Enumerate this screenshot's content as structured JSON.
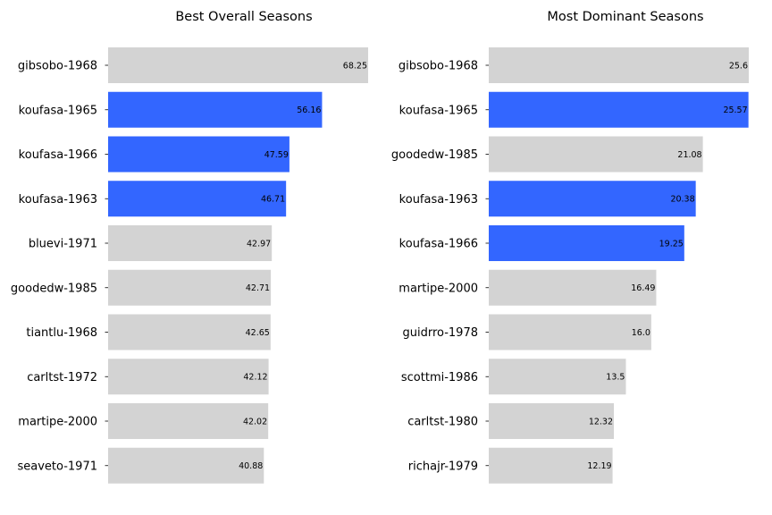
{
  "colors": {
    "highlight": "#3366ff",
    "default": "#d3d3d3",
    "background": "#ffffff"
  },
  "chart_data": [
    {
      "type": "bar",
      "orientation": "horizontal",
      "title": "Best Overall Seasons",
      "categories": [
        "gibsobo-1968",
        "koufasa-1965",
        "koufasa-1966",
        "koufasa-1963",
        "bluevi-1971",
        "goodedw-1985",
        "tiantlu-1968",
        "carltst-1972",
        "martipe-2000",
        "seaveto-1971"
      ],
      "values": [
        68.25,
        56.16,
        47.59,
        46.71,
        42.97,
        42.71,
        42.65,
        42.12,
        42.02,
        40.88
      ],
      "value_labels": [
        "68.25",
        "56.16",
        "47.59",
        "46.71",
        "42.97",
        "42.71",
        "42.65",
        "42.12",
        "42.02",
        "40.88"
      ],
      "highlighted": [
        false,
        true,
        true,
        true,
        false,
        false,
        false,
        false,
        false,
        false
      ],
      "xlim": [
        0,
        68.25
      ],
      "grid": false,
      "x_axis_visible": false
    },
    {
      "type": "bar",
      "orientation": "horizontal",
      "title": "Most Dominant Seasons",
      "categories": [
        "gibsobo-1968",
        "koufasa-1965",
        "goodedw-1985",
        "koufasa-1963",
        "koufasa-1966",
        "martipe-2000",
        "guidrro-1978",
        "scottmi-1986",
        "carltst-1980",
        "richajr-1979"
      ],
      "values": [
        25.6,
        25.57,
        21.08,
        20.38,
        19.25,
        16.49,
        16.0,
        13.5,
        12.32,
        12.19
      ],
      "value_labels": [
        "25.6",
        "25.57",
        "21.08",
        "20.38",
        "19.25",
        "16.49",
        "16.0",
        "13.5",
        "12.32",
        "12.19"
      ],
      "highlighted": [
        false,
        true,
        false,
        true,
        true,
        false,
        false,
        false,
        false,
        false
      ],
      "xlim": [
        0,
        25.6
      ],
      "grid": false,
      "x_axis_visible": false
    }
  ]
}
